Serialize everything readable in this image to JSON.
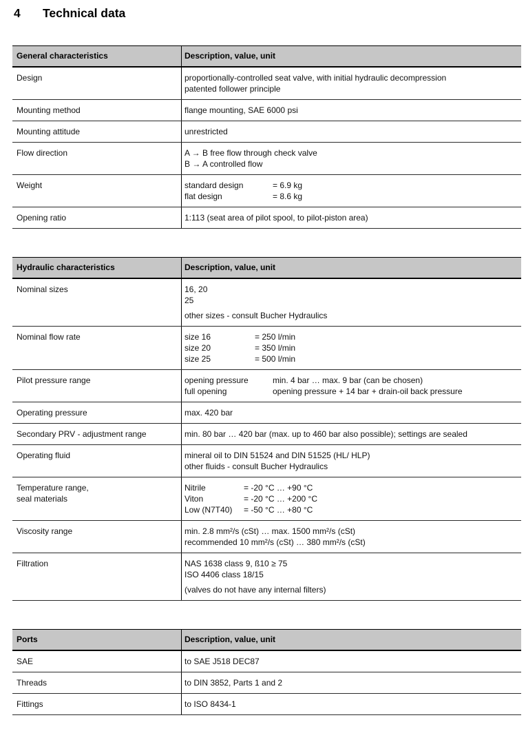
{
  "page": {
    "section_number": "4",
    "title": "Technical data"
  },
  "header_col2": "Description, value, unit",
  "colors": {
    "header_background": "#c6c6c6",
    "border": "#000000",
    "text": "#111111"
  },
  "tables": [
    {
      "col1_header": "General characteristics",
      "col2_header": "Description, value, unit",
      "rows": [
        {
          "label": "Design",
          "lines": [
            {
              "text": "proportionally-controlled seat valve, with initial hydraulic decompression"
            },
            {
              "text": "patented follower principle"
            }
          ]
        },
        {
          "label": "Mounting method",
          "lines": [
            {
              "text": "flange mounting, SAE 6000 psi"
            }
          ]
        },
        {
          "label": "Mounting attitude",
          "lines": [
            {
              "text": "unrestricted"
            }
          ]
        },
        {
          "label": "Flow direction",
          "lines": [
            {
              "text": "A → B free flow through check valve"
            },
            {
              "text": "B → A controlled flow"
            }
          ]
        },
        {
          "label": "Weight",
          "lines": [
            {
              "tab": "standard design",
              "text": "= 6.9 kg"
            },
            {
              "tab": "flat design",
              "text": "= 8.6 kg"
            }
          ]
        },
        {
          "label": "Opening ratio",
          "lines": [
            {
              "text": "1:113 (seat area of pilot spool, to pilot-piston area)"
            }
          ]
        }
      ]
    },
    {
      "col1_header": "Hydraulic characteristics",
      "col2_header": "Description, value, unit",
      "rows": [
        {
          "label": "Nominal sizes",
          "lines": [
            {
              "text": "16, 20"
            },
            {
              "text": "25"
            },
            {
              "text": "other sizes - consult Bucher Hydraulics"
            }
          ]
        },
        {
          "label": "Nominal flow rate",
          "lines": [
            {
              "tab": "size 16",
              "text": "= 250 l/min"
            },
            {
              "tab": "size 20",
              "text": "= 350 l/min"
            },
            {
              "tab": "size 25",
              "text": "= 500 l/min"
            }
          ]
        },
        {
          "label": "Pilot pressure range",
          "lines": [
            {
              "tab": "opening pressure",
              "text": "min. 4 bar … max. 9 bar (can be chosen)"
            },
            {
              "tab": "full opening",
              "text": "opening pressure + 14 bar + drain-oil back pressure"
            }
          ]
        },
        {
          "label": "Operating pressure",
          "lines": [
            {
              "text": "max. 420 bar"
            }
          ]
        },
        {
          "label": "Secondary PRV - adjustment range",
          "lines": [
            {
              "text": "min. 80 bar … 420 bar (max. up to 460 bar also possible); settings are sealed"
            }
          ]
        },
        {
          "label": "Operating fluid",
          "lines": [
            {
              "text": "mineral oil to DIN 51524 and DIN 51525 (HL/ HLP)"
            },
            {
              "text": "other fluids - consult Bucher Hydraulics"
            }
          ]
        },
        {
          "label": "Temperature range,\nseal materials",
          "lines": [
            {
              "tab": "Nitrile",
              "text": "= -20 °C … +90 °C"
            },
            {
              "tab": "Viton",
              "text": "= -20 °C … +200 °C"
            },
            {
              "tab": "Low (N7T40)",
              "text": "= -50 °C … +80 °C"
            }
          ]
        },
        {
          "label": "Viscosity range",
          "lines": [
            {
              "text": "min. 2.8 mm²/s (cSt) … max. 1500 mm²/s (cSt)"
            },
            {
              "text": "recommended 10 mm²/s (cSt) … 380 mm²/s (cSt)"
            }
          ]
        },
        {
          "label": "Filtration",
          "lines": [
            {
              "text": "NAS 1638 class 9, ß10 ≥ 75"
            },
            {
              "text": "ISO 4406 class 18/15"
            },
            {
              "text": "(valves do not have any internal filters)"
            }
          ]
        }
      ]
    },
    {
      "col1_header": "Ports",
      "col2_header": "Description, value, unit",
      "rows": [
        {
          "label": "SAE",
          "lines": [
            {
              "text": "to SAE J518 DEC87"
            }
          ]
        },
        {
          "label": "Threads",
          "lines": [
            {
              "text": "to DIN 3852, Parts 1 and 2"
            }
          ]
        },
        {
          "label": "Fittings",
          "lines": [
            {
              "text": "to ISO 8434-1"
            }
          ]
        }
      ]
    }
  ]
}
